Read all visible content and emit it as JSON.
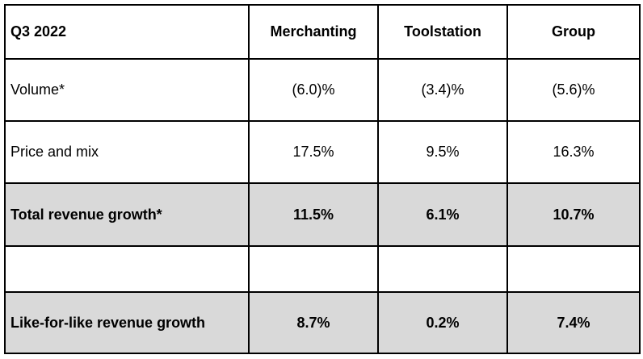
{
  "table": {
    "header": {
      "label": "Q3 2022",
      "merchanting": "Merchanting",
      "toolstation": "Toolstation",
      "group": "Group"
    },
    "rows": [
      {
        "label": "Volume*",
        "merchanting": "(6.0)%",
        "toolstation": "(3.4)%",
        "group": "(5.6)%"
      },
      {
        "label": "Price and mix",
        "merchanting": "17.5%",
        "toolstation": "9.5%",
        "group": "16.3%"
      },
      {
        "label": "Total revenue growth*",
        "merchanting": "11.5%",
        "toolstation": "6.1%",
        "group": "10.7%"
      },
      {
        "label": "",
        "merchanting": "",
        "toolstation": "",
        "group": ""
      },
      {
        "label": "Like-for-like revenue growth",
        "merchanting": "8.7%",
        "toolstation": "0.2%",
        "group": "7.4%"
      }
    ]
  },
  "colors": {
    "highlight_row": "#d9d9d9",
    "border": "#000000"
  }
}
